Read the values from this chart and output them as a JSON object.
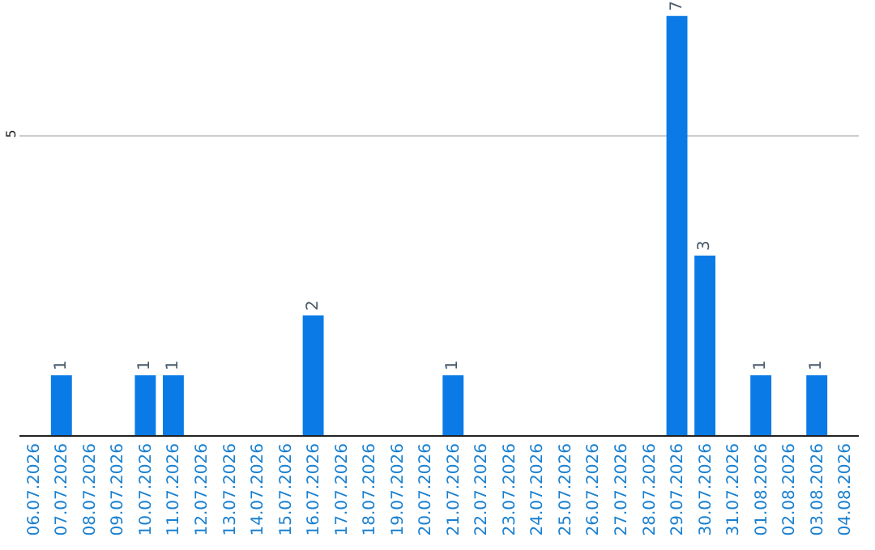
{
  "chart_data": {
    "type": "bar",
    "categories": [
      "06.07.2026",
      "07.07.2026",
      "08.07.2026",
      "09.07.2026",
      "10.07.2026",
      "11.07.2026",
      "12.07.2026",
      "13.07.2026",
      "14.07.2026",
      "15.07.2026",
      "16.07.2026",
      "17.07.2026",
      "18.07.2026",
      "19.07.2026",
      "20.07.2026",
      "21.07.2026",
      "22.07.2026",
      "23.07.2026",
      "24.07.2026",
      "25.07.2026",
      "26.07.2026",
      "27.07.2026",
      "28.07.2026",
      "29.07.2026",
      "30.07.2026",
      "31.07.2026",
      "01.08.2026",
      "02.08.2026",
      "03.08.2026",
      "04.08.2026"
    ],
    "values": [
      0,
      1,
      0,
      0,
      1,
      1,
      0,
      0,
      0,
      0,
      2,
      0,
      0,
      0,
      0,
      1,
      0,
      0,
      0,
      0,
      0,
      0,
      0,
      7,
      3,
      0,
      1,
      0,
      1,
      0
    ],
    "value_labels": [
      null,
      "1",
      null,
      null,
      "1",
      "1",
      null,
      null,
      null,
      null,
      "2",
      null,
      null,
      null,
      null,
      "1",
      null,
      null,
      null,
      null,
      null,
      null,
      null,
      "7",
      "3",
      null,
      "1",
      null,
      "1",
      null
    ],
    "color": "#0a7be6",
    "ylim": [
      0,
      7.05
    ],
    "yticks": [
      5
    ],
    "grid": "y",
    "legend": false
  }
}
